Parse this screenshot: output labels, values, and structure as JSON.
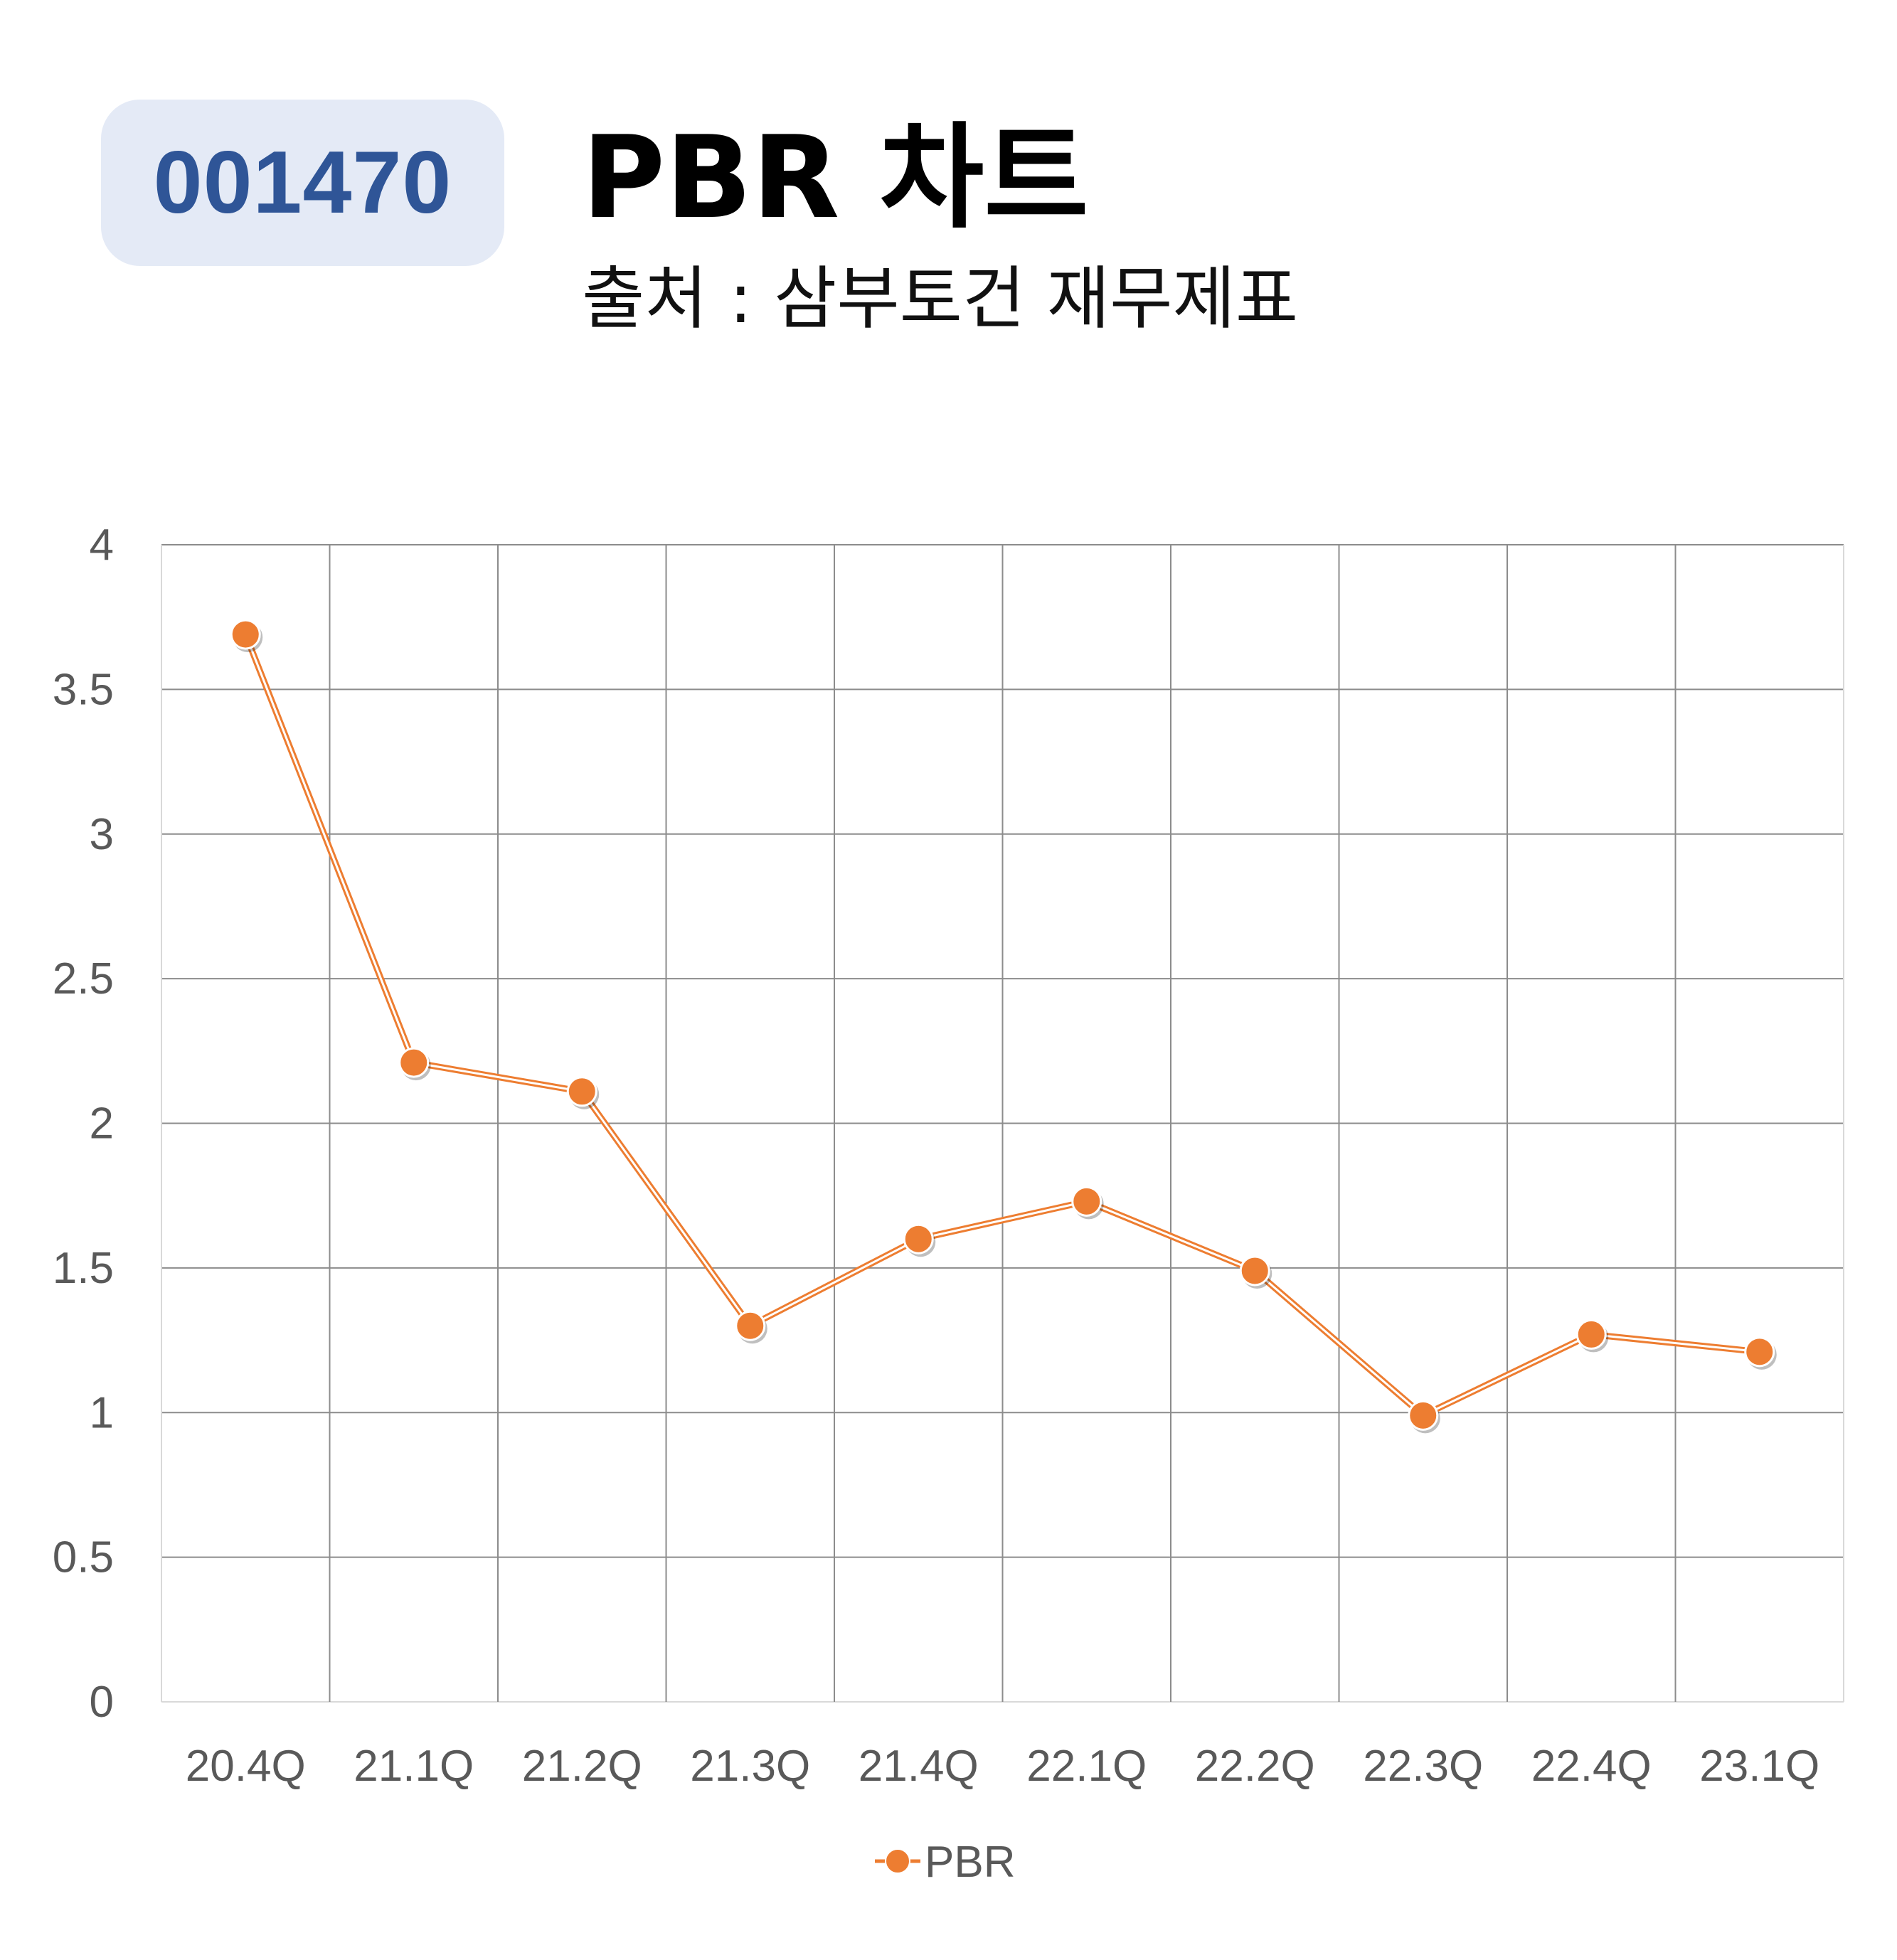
{
  "header": {
    "code": "001470",
    "title": "PBR 차트",
    "source": "출처 : 삼부토건 재무제표"
  },
  "colors": {
    "badge_bg": "#e4eaf6",
    "badge_text": "#2f5597",
    "series": "#ed7d31",
    "grid": "#8c8c8c",
    "tick_text": "#595959"
  },
  "chart_data": {
    "type": "line",
    "categories": [
      "20.4Q",
      "21.1Q",
      "21.2Q",
      "21.3Q",
      "21.4Q",
      "22.1Q",
      "22.2Q",
      "22.3Q",
      "22.4Q",
      "23.1Q"
    ],
    "series": [
      {
        "name": "PBR",
        "values": [
          3.69,
          2.21,
          2.11,
          1.3,
          1.6,
          1.73,
          1.49,
          0.99,
          1.27,
          1.21
        ]
      }
    ],
    "y_ticks": [
      "0",
      "0.5",
      "1",
      "1.5",
      "2",
      "2.5",
      "3",
      "3.5",
      "4"
    ],
    "ylim": [
      0,
      4
    ],
    "grid": true,
    "legend": "bottom-center",
    "marker": "circle"
  }
}
